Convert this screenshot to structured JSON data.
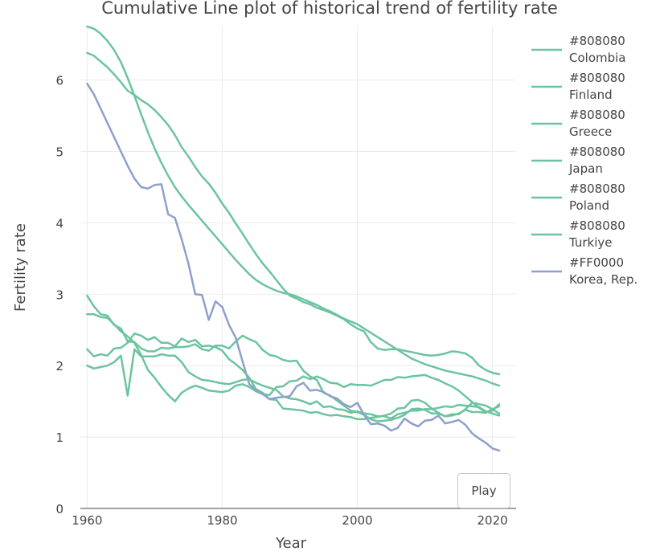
{
  "chart_data": {
    "type": "line",
    "title": "Cumulative Line plot of historical trend of fertility rate",
    "xlabel": "Year",
    "ylabel": "Fertility rate",
    "xlim": [
      1959,
      2023.5
    ],
    "ylim": [
      0,
      6.75
    ],
    "x_ticks": [
      1960,
      1980,
      2000,
      2020
    ],
    "y_ticks": [
      0,
      1,
      2,
      3,
      4,
      5,
      6
    ],
    "grid": true,
    "legend_position": "right",
    "x": [
      1960,
      1961,
      1962,
      1963,
      1964,
      1965,
      1966,
      1967,
      1968,
      1969,
      1970,
      1971,
      1972,
      1973,
      1974,
      1975,
      1976,
      1977,
      1978,
      1979,
      1980,
      1981,
      1982,
      1983,
      1984,
      1985,
      1986,
      1987,
      1988,
      1989,
      1990,
      1991,
      1992,
      1993,
      1994,
      1995,
      1996,
      1997,
      1998,
      1999,
      2000,
      2001,
      2002,
      2003,
      2004,
      2005,
      2006,
      2007,
      2008,
      2009,
      2010,
      2011,
      2012,
      2013,
      2014,
      2015,
      2016,
      2017,
      2018,
      2019,
      2020,
      2021
    ],
    "series": [
      {
        "name": "Colombia",
        "legend_color_label": "#808080",
        "color": "#6cc49f",
        "values": [
          6.75,
          6.72,
          6.65,
          6.55,
          6.42,
          6.25,
          6.03,
          5.78,
          5.52,
          5.27,
          5.04,
          4.84,
          4.66,
          4.5,
          4.37,
          4.25,
          4.14,
          4.03,
          3.92,
          3.81,
          3.7,
          3.59,
          3.48,
          3.38,
          3.28,
          3.2,
          3.14,
          3.09,
          3.05,
          3.02,
          3.0,
          2.97,
          2.93,
          2.89,
          2.85,
          2.8,
          2.76,
          2.71,
          2.66,
          2.62,
          2.58,
          2.52,
          2.46,
          2.4,
          2.34,
          2.28,
          2.22,
          2.16,
          2.1,
          2.06,
          2.02,
          1.99,
          1.96,
          1.93,
          1.91,
          1.89,
          1.87,
          1.85,
          1.82,
          1.79,
          1.75,
          1.72
        ]
      },
      {
        "name": "Finland",
        "legend_color_label": "#808080",
        "color": "#6cc49f",
        "values": [
          2.72,
          2.72,
          2.68,
          2.67,
          2.58,
          2.48,
          2.41,
          2.32,
          2.15,
          1.94,
          1.83,
          1.7,
          1.59,
          1.5,
          1.62,
          1.68,
          1.72,
          1.69,
          1.65,
          1.64,
          1.63,
          1.65,
          1.72,
          1.74,
          1.7,
          1.64,
          1.6,
          1.59,
          1.7,
          1.71,
          1.78,
          1.79,
          1.85,
          1.81,
          1.85,
          1.81,
          1.76,
          1.75,
          1.7,
          1.74,
          1.73,
          1.73,
          1.72,
          1.76,
          1.8,
          1.8,
          1.84,
          1.83,
          1.85,
          1.86,
          1.87,
          1.83,
          1.8,
          1.75,
          1.71,
          1.65,
          1.57,
          1.49,
          1.41,
          1.35,
          1.37,
          1.46
        ]
      },
      {
        "name": "Greece",
        "legend_color_label": "#808080",
        "color": "#6cc49f",
        "values": [
          2.23,
          2.13,
          2.16,
          2.14,
          2.24,
          2.25,
          2.32,
          2.45,
          2.42,
          2.36,
          2.4,
          2.32,
          2.32,
          2.27,
          2.38,
          2.33,
          2.36,
          2.27,
          2.28,
          2.26,
          2.21,
          2.09,
          2.02,
          1.94,
          1.83,
          1.67,
          1.62,
          1.53,
          1.52,
          1.4,
          1.39,
          1.38,
          1.37,
          1.34,
          1.35,
          1.32,
          1.3,
          1.31,
          1.29,
          1.28,
          1.25,
          1.25,
          1.27,
          1.28,
          1.3,
          1.33,
          1.4,
          1.41,
          1.51,
          1.52,
          1.48,
          1.4,
          1.34,
          1.29,
          1.3,
          1.33,
          1.38,
          1.35,
          1.35,
          1.34,
          1.39,
          1.43
        ]
      },
      {
        "name": "Japan",
        "legend_color_label": "#808080",
        "color": "#6cc49f",
        "values": [
          2.0,
          1.96,
          1.98,
          2.0,
          2.05,
          2.14,
          1.58,
          2.23,
          2.13,
          2.13,
          2.13,
          2.16,
          2.14,
          2.14,
          2.05,
          1.91,
          1.85,
          1.8,
          1.79,
          1.77,
          1.75,
          1.74,
          1.77,
          1.8,
          1.81,
          1.76,
          1.72,
          1.69,
          1.66,
          1.57,
          1.54,
          1.53,
          1.5,
          1.46,
          1.5,
          1.42,
          1.43,
          1.39,
          1.38,
          1.34,
          1.36,
          1.33,
          1.32,
          1.29,
          1.29,
          1.26,
          1.32,
          1.34,
          1.37,
          1.37,
          1.39,
          1.39,
          1.41,
          1.43,
          1.42,
          1.45,
          1.44,
          1.43,
          1.42,
          1.36,
          1.33,
          1.3
        ]
      },
      {
        "name": "Poland",
        "legend_color_label": "#808080",
        "color": "#6cc49f",
        "values": [
          2.98,
          2.83,
          2.72,
          2.7,
          2.57,
          2.52,
          2.34,
          2.33,
          2.24,
          2.2,
          2.2,
          2.25,
          2.24,
          2.26,
          2.26,
          2.27,
          2.3,
          2.23,
          2.21,
          2.28,
          2.28,
          2.24,
          2.34,
          2.42,
          2.37,
          2.33,
          2.22,
          2.15,
          2.13,
          2.08,
          2.06,
          2.07,
          1.93,
          1.85,
          1.8,
          1.62,
          1.58,
          1.51,
          1.44,
          1.37,
          1.35,
          1.31,
          1.25,
          1.22,
          1.23,
          1.24,
          1.27,
          1.31,
          1.39,
          1.4,
          1.38,
          1.33,
          1.33,
          1.29,
          1.32,
          1.32,
          1.39,
          1.48,
          1.46,
          1.44,
          1.39,
          1.33
        ]
      },
      {
        "name": "Turkiye",
        "legend_color_label": "#808080",
        "color": "#6cc49f",
        "values": [
          6.38,
          6.34,
          6.26,
          6.18,
          6.08,
          5.97,
          5.85,
          5.79,
          5.72,
          5.66,
          5.58,
          5.48,
          5.37,
          5.23,
          5.06,
          4.93,
          4.78,
          4.65,
          4.55,
          4.42,
          4.27,
          4.14,
          3.99,
          3.85,
          3.7,
          3.56,
          3.43,
          3.32,
          3.2,
          3.08,
          2.98,
          2.94,
          2.89,
          2.86,
          2.81,
          2.78,
          2.74,
          2.7,
          2.65,
          2.58,
          2.52,
          2.48,
          2.33,
          2.24,
          2.22,
          2.23,
          2.23,
          2.21,
          2.19,
          2.17,
          2.15,
          2.14,
          2.15,
          2.17,
          2.2,
          2.19,
          2.17,
          2.11,
          2.0,
          1.94,
          1.9,
          1.88
        ]
      },
      {
        "name": "Korea, Rep.",
        "legend_color_label": "#FF0000",
        "color": "#8ea0cb",
        "values": [
          5.95,
          5.8,
          5.6,
          5.4,
          5.2,
          5.0,
          4.8,
          4.62,
          4.5,
          4.48,
          4.53,
          4.54,
          4.12,
          4.07,
          3.77,
          3.43,
          3.0,
          2.99,
          2.64,
          2.9,
          2.82,
          2.57,
          2.39,
          2.06,
          1.74,
          1.66,
          1.6,
          1.53,
          1.55,
          1.56,
          1.57,
          1.71,
          1.76,
          1.65,
          1.66,
          1.63,
          1.57,
          1.54,
          1.46,
          1.42,
          1.48,
          1.31,
          1.18,
          1.19,
          1.16,
          1.09,
          1.13,
          1.26,
          1.19,
          1.15,
          1.23,
          1.24,
          1.3,
          1.19,
          1.21,
          1.24,
          1.17,
          1.05,
          0.98,
          0.92,
          0.84,
          0.81
        ]
      }
    ]
  },
  "controls": {
    "play_label": "Play"
  }
}
